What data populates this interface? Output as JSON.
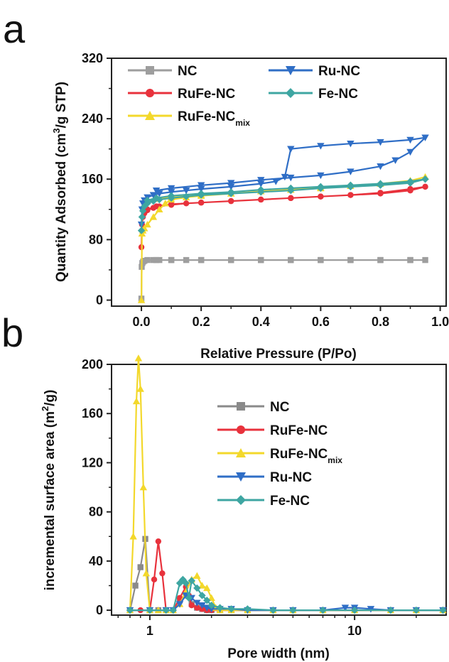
{
  "chart_data": [
    {
      "panel_label": "a",
      "type": "line",
      "xlabel": "Relative Pressure (P/Po)",
      "ylabel": "Quantity Adsorbed (cm³/g STP)",
      "ylabel_parts": {
        "pre": "Quantity Adsorbed (cm",
        "sup": "3",
        "post": "/g STP)"
      },
      "xlim": [
        -0.1,
        1.02
      ],
      "ylim": [
        -8,
        320
      ],
      "xticks": [
        0.0,
        0.2,
        0.4,
        0.6,
        0.8,
        1.0
      ],
      "xtick_labels": [
        "0.0",
        "0.2",
        "0.4",
        "0.6",
        "0.8",
        "1.0"
      ],
      "yticks": [
        0,
        80,
        160,
        240,
        320
      ],
      "ytick_labels": [
        "0",
        "80",
        "160",
        "240",
        "320"
      ],
      "grid": false,
      "legend_placement": "top-left",
      "series": [
        {
          "key": "NC",
          "name": "NC",
          "color": "#9e9e9e",
          "marker": "square",
          "x": [
            0.0,
            0.001,
            0.003,
            0.006,
            0.01,
            0.02,
            0.04,
            0.06,
            0.1,
            0.15,
            0.2,
            0.3,
            0.4,
            0.5,
            0.6,
            0.7,
            0.8,
            0.9,
            0.95,
            0.9,
            0.8,
            0.7,
            0.6,
            0.5,
            0.4,
            0.3,
            0.2,
            0.1,
            0.05
          ],
          "y": [
            2,
            44,
            49,
            51,
            52,
            53,
            53,
            53,
            53,
            53,
            53,
            53,
            53,
            53,
            53,
            53,
            53,
            53,
            53,
            53,
            53,
            53,
            53,
            53,
            53,
            53,
            53,
            53,
            53
          ]
        },
        {
          "key": "RuFe-NC",
          "name": "RuFe-NC",
          "color": "#e8323c",
          "marker": "circle",
          "x": [
            0.0,
            0.002,
            0.005,
            0.01,
            0.02,
            0.04,
            0.06,
            0.1,
            0.15,
            0.2,
            0.3,
            0.4,
            0.5,
            0.6,
            0.7,
            0.8,
            0.9,
            0.95,
            0.9,
            0.8,
            0.7,
            0.6,
            0.5,
            0.4,
            0.3,
            0.2,
            0.1,
            0.05,
            0.02
          ],
          "y": [
            70,
            100,
            110,
            115,
            119,
            122,
            124,
            126,
            128,
            129,
            131,
            133,
            135,
            137,
            139,
            141,
            145,
            150,
            147,
            142,
            139,
            137,
            135,
            133,
            131,
            129,
            127,
            124,
            120
          ]
        },
        {
          "key": "RuFe-NC_mix",
          "name": "RuFe-NC",
          "name_sub": "mix",
          "color": "#f3d82b",
          "marker": "triangle-up",
          "x": [
            0.0,
            0.002,
            0.005,
            0.01,
            0.02,
            0.04,
            0.06,
            0.08,
            0.1,
            0.15,
            0.2,
            0.3,
            0.4,
            0.5,
            0.6,
            0.7,
            0.8,
            0.9,
            0.95,
            0.9,
            0.8,
            0.7,
            0.6,
            0.5,
            0.4,
            0.3,
            0.2,
            0.1,
            0.05
          ],
          "y": [
            0,
            88,
            92,
            95,
            100,
            110,
            120,
            128,
            133,
            136,
            138,
            141,
            144,
            146,
            149,
            151,
            154,
            158,
            163,
            158,
            154,
            151,
            148,
            146,
            144,
            141,
            139,
            136,
            134
          ]
        },
        {
          "key": "Ru-NC",
          "name": "Ru-NC",
          "color": "#2f6ec6",
          "marker": "triangle-down",
          "x": [
            0.0,
            0.002,
            0.005,
            0.01,
            0.02,
            0.04,
            0.06,
            0.1,
            0.15,
            0.2,
            0.3,
            0.4,
            0.45,
            0.48,
            0.5,
            0.6,
            0.7,
            0.8,
            0.9,
            0.95,
            0.9,
            0.85,
            0.8,
            0.7,
            0.6,
            0.5,
            0.4,
            0.3,
            0.2,
            0.1,
            0.05
          ],
          "y": [
            100,
            120,
            128,
            132,
            136,
            139,
            141,
            143,
            145,
            147,
            150,
            154,
            157,
            163,
            200,
            204,
            207,
            209,
            212,
            215,
            196,
            185,
            177,
            170,
            165,
            162,
            159,
            155,
            152,
            148,
            145
          ]
        },
        {
          "key": "Fe-NC",
          "name": "Fe-NC",
          "color": "#3ea6a2",
          "marker": "diamond",
          "x": [
            0.0,
            0.002,
            0.005,
            0.01,
            0.02,
            0.04,
            0.06,
            0.1,
            0.15,
            0.2,
            0.3,
            0.4,
            0.5,
            0.6,
            0.7,
            0.8,
            0.9,
            0.95,
            0.9,
            0.8,
            0.7,
            0.6,
            0.5,
            0.4,
            0.3,
            0.2,
            0.1,
            0.05,
            0.02
          ],
          "y": [
            92,
            110,
            118,
            124,
            128,
            131,
            133,
            135,
            137,
            139,
            141,
            143,
            145,
            148,
            150,
            152,
            155,
            160,
            157,
            154,
            152,
            150,
            148,
            146,
            143,
            141,
            138,
            135,
            132
          ]
        }
      ]
    },
    {
      "panel_label": "b",
      "type": "line",
      "xscale": "log",
      "xlabel": "Pore width (nm)",
      "ylabel": "incremental surface area (m²/g)",
      "ylabel_parts": {
        "pre": "incremental surface area (m",
        "sup": "2",
        "post": "/g)"
      },
      "xlim": [
        0.65,
        28
      ],
      "ylim": [
        -4,
        200
      ],
      "xticks": [
        1,
        10
      ],
      "xtick_labels": [
        "1",
        "10"
      ],
      "yticks": [
        0,
        40,
        80,
        120,
        160,
        200
      ],
      "ytick_labels": [
        "0",
        "40",
        "80",
        "120",
        "160",
        "200"
      ],
      "grid": false,
      "legend_placement": "top-right",
      "series": [
        {
          "key": "NC",
          "name": "NC",
          "color": "#8a8a8a",
          "marker": "square",
          "x": [
            0.8,
            0.85,
            0.9,
            0.95,
            1.0,
            1.1,
            1.2,
            1.3,
            1.4,
            1.5,
            1.6,
            1.7,
            1.8,
            1.9,
            2.0,
            2.2,
            2.5,
            3,
            4,
            5,
            7,
            10,
            15,
            20,
            27
          ],
          "y": [
            0,
            20,
            35,
            58,
            0,
            0,
            0,
            0,
            8,
            12,
            5,
            2,
            1,
            0,
            0,
            0,
            0,
            0,
            0,
            0,
            0,
            0,
            0,
            0,
            0
          ]
        },
        {
          "key": "RuFe-NC",
          "name": "RuFe-NC",
          "color": "#e8323c",
          "marker": "circle",
          "x": [
            0.8,
            0.9,
            1.0,
            1.05,
            1.1,
            1.15,
            1.2,
            1.3,
            1.4,
            1.5,
            1.55,
            1.6,
            1.7,
            1.8,
            1.9,
            2.0,
            2.2,
            2.5,
            3,
            4,
            5,
            7,
            10,
            15,
            20,
            27
          ],
          "y": [
            0,
            0,
            0,
            25,
            56,
            30,
            0,
            0,
            10,
            19,
            12,
            4,
            2,
            1,
            0,
            0,
            0,
            0,
            0,
            0,
            0,
            0,
            0,
            0,
            0,
            0
          ]
        },
        {
          "key": "RuFe-NC_mix",
          "name": "RuFe-NC",
          "name_sub": "mix",
          "color": "#f3d82b",
          "marker": "triangle-up",
          "x": [
            0.8,
            0.83,
            0.86,
            0.88,
            0.9,
            0.93,
            0.96,
            1.0,
            1.1,
            1.2,
            1.3,
            1.4,
            1.5,
            1.6,
            1.7,
            1.8,
            1.9,
            2.0,
            2.1,
            2.2,
            2.5,
            3,
            4,
            5,
            7,
            10,
            15,
            20,
            27
          ],
          "y": [
            0,
            60,
            170,
            205,
            180,
            100,
            30,
            0,
            0,
            0,
            0,
            5,
            15,
            25,
            28,
            20,
            18,
            10,
            2,
            0,
            0,
            0,
            0,
            0,
            0,
            0,
            0,
            0,
            0
          ]
        },
        {
          "key": "Ru-NC",
          "name": "Ru-NC",
          "color": "#2f6ec6",
          "marker": "triangle-down",
          "x": [
            0.8,
            1.0,
            1.2,
            1.3,
            1.4,
            1.5,
            1.6,
            1.7,
            1.8,
            1.9,
            2.0,
            2.2,
            2.5,
            3,
            4,
            5,
            7,
            9,
            10,
            12,
            15,
            20,
            27
          ],
          "y": [
            0,
            0,
            0,
            0,
            5,
            12,
            10,
            6,
            4,
            2,
            1,
            1,
            1,
            0,
            0,
            0,
            0,
            2,
            2,
            1,
            0,
            0,
            0
          ]
        },
        {
          "key": "Fe-NC",
          "name": "Fe-NC",
          "color": "#3ea6a2",
          "marker": "diamond",
          "x": [
            0.8,
            1.0,
            1.2,
            1.3,
            1.4,
            1.45,
            1.5,
            1.55,
            1.6,
            1.7,
            1.8,
            1.9,
            2.0,
            2.2,
            2.5,
            3,
            4,
            5,
            7,
            10,
            15,
            20,
            27
          ],
          "y": [
            0,
            0,
            0,
            0,
            22,
            25,
            22,
            10,
            24,
            18,
            12,
            8,
            4,
            2,
            1,
            1,
            0,
            0,
            0,
            0,
            0,
            0,
            0
          ]
        }
      ]
    }
  ]
}
